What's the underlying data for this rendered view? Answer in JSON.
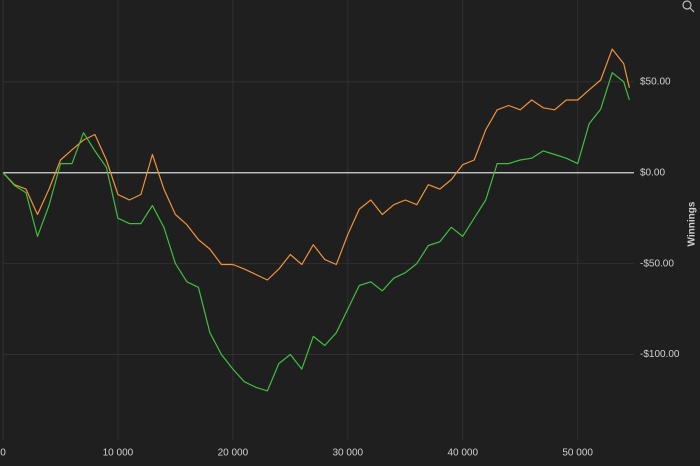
{
  "chart_data": {
    "type": "line",
    "y_label": "Winnings",
    "x": [
      0,
      1000,
      2000,
      3000,
      4000,
      5000,
      6000,
      7000,
      8000,
      9000,
      10000,
      11000,
      12000,
      13000,
      14000,
      15000,
      16000,
      17000,
      18000,
      19000,
      20000,
      21000,
      22000,
      23000,
      24000,
      25000,
      26000,
      27000,
      28000,
      29000,
      30000,
      31000,
      32000,
      33000,
      34000,
      35000,
      36000,
      37000,
      38000,
      39000,
      40000,
      41000,
      42000,
      43000,
      44000,
      45000,
      46000,
      47000,
      48000,
      49000,
      50000,
      51000,
      52000,
      53000,
      54000,
      54500
    ],
    "series": [
      {
        "color": "#f0923a",
        "values": [
          0,
          -6.6,
          -9,
          -23,
          -9,
          7,
          12.6,
          18,
          21,
          7,
          -12,
          -15,
          -12,
          10,
          -9,
          -23,
          -28.6,
          -36.8,
          -42,
          -50.5,
          -50.5,
          -53,
          -56,
          -59,
          -53,
          -45,
          -50.5,
          -39.6,
          -47.8,
          -50.5,
          -34,
          -20,
          -15,
          -23,
          -17.6,
          -15,
          -17.6,
          -6.6,
          -9,
          -3.8,
          4.4,
          7,
          23.6,
          34.6,
          37,
          34.6,
          40,
          35.7,
          34.6,
          40,
          40,
          45.6,
          51,
          68,
          60,
          46.7
        ]
      },
      {
        "color": "#3fbf3f",
        "values": [
          0,
          -7,
          -11,
          -35,
          -18,
          5,
          5,
          22,
          12,
          3,
          -25,
          -28,
          -28,
          -18,
          -30,
          -50,
          -60,
          -63,
          -88,
          -100,
          -108,
          -115,
          -118,
          -120,
          -105,
          -100,
          -108,
          -90,
          -95,
          -88,
          -75,
          -62,
          -60,
          -65,
          -58,
          -55,
          -50,
          -40,
          -38,
          -30,
          -35,
          -25,
          -15,
          5,
          5,
          7,
          8,
          12,
          10,
          8,
          5,
          27,
          35,
          55,
          50,
          40
        ]
      }
    ],
    "xlim": [
      0,
      54900
    ],
    "xticks": [
      0,
      {
        "value": 10000,
        "label": "10 000"
      },
      {
        "value": 20000,
        "label": "20 000"
      },
      {
        "value": 30000,
        "label": "30 000"
      },
      {
        "value": 40000,
        "label": "40 000"
      },
      {
        "value": 50000,
        "label": "50 000"
      }
    ],
    "ylim": [
      -147,
      95
    ],
    "yticks": [
      {
        "value": -100,
        "label": "-$100.00"
      },
      {
        "value": -50,
        "label": "-$50.00"
      },
      {
        "value": 0,
        "label": "$0.00"
      },
      {
        "value": 50,
        "label": "$50.00"
      }
    ],
    "grid": true
  }
}
